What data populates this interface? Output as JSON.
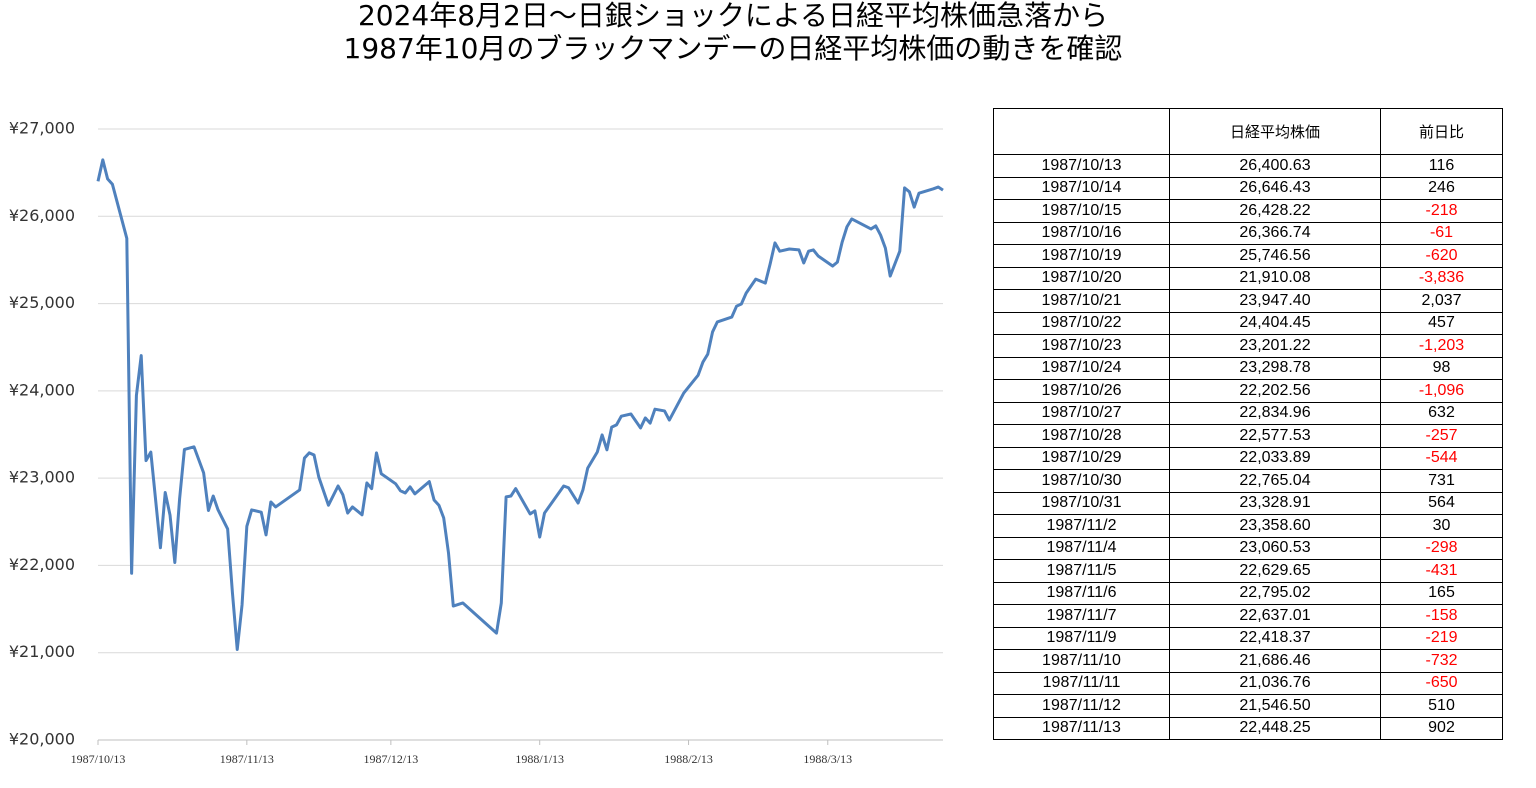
{
  "chart_data": {
    "type": "line",
    "title_lines": [
      "2024年8月2日～日銀ショックによる日経平均株価急落から",
      "1987年10月のブラックマンデーの日経平均株価の動きを確認"
    ],
    "x": [
      "1987/10/13",
      "1987/10/14",
      "1987/10/15",
      "1987/10/16",
      "1987/10/19",
      "1987/10/20",
      "1987/10/21",
      "1987/10/22",
      "1987/10/23",
      "1987/10/24",
      "1987/10/26",
      "1987/10/27",
      "1987/10/28",
      "1987/10/29",
      "1987/10/30",
      "1987/10/31",
      "1987/11/2",
      "1987/11/4",
      "1987/11/5",
      "1987/11/6",
      "1987/11/7",
      "1987/11/9",
      "1987/11/10",
      "1987/11/11",
      "1987/11/12",
      "1987/11/13",
      "1987/11/14",
      "1987/11/16",
      "1987/11/17",
      "1987/11/18",
      "1987/11/19",
      "1987/11/24",
      "1987/11/25",
      "1987/11/26",
      "1987/11/27",
      "1987/11/28",
      "1987/11/30",
      "1987/12/2",
      "1987/12/3",
      "1987/12/4",
      "1987/12/5",
      "1987/12/7",
      "1987/12/8",
      "1987/12/9",
      "1987/12/10",
      "1987/12/11",
      "1987/12/14",
      "1987/12/15",
      "1987/12/16",
      "1987/12/17",
      "1987/12/18",
      "1987/12/21",
      "1987/12/22",
      "1987/12/23",
      "1987/12/24",
      "1987/12/25",
      "1987/12/26",
      "1987/12/28",
      "1988/1/4",
      "1988/1/5",
      "1988/1/6",
      "1988/1/7",
      "1988/1/8",
      "1988/1/11",
      "1988/1/12",
      "1988/1/13",
      "1988/1/14",
      "1988/1/18",
      "1988/1/19",
      "1988/1/21",
      "1988/1/22",
      "1988/1/23",
      "1988/1/25",
      "1988/1/26",
      "1988/1/27",
      "1988/1/28",
      "1988/1/29",
      "1988/1/30",
      "1988/2/1",
      "1988/2/3",
      "1988/2/4",
      "1988/2/5",
      "1988/2/6",
      "1988/2/8",
      "1988/2/9",
      "1988/2/12",
      "1988/2/15",
      "1988/2/16",
      "1988/2/17",
      "1988/2/18",
      "1988/2/19",
      "1988/2/22",
      "1988/2/23",
      "1988/2/24",
      "1988/2/25",
      "1988/2/26",
      "1988/2/27",
      "1988/2/29",
      "1988/3/1",
      "1988/3/2",
      "1988/3/3",
      "1988/3/5",
      "1988/3/7",
      "1988/3/8",
      "1988/3/9",
      "1988/3/10",
      "1988/3/11",
      "1988/3/14",
      "1988/3/15",
      "1988/3/16",
      "1988/3/17",
      "1988/3/18",
      "1988/3/22",
      "1988/3/23",
      "1988/3/24",
      "1988/3/25",
      "1988/3/26",
      "1988/3/28",
      "1988/3/29",
      "1988/3/30",
      "1988/3/31",
      "1988/4/1",
      "1988/4/4",
      "1988/4/5",
      "1988/4/6"
    ],
    "values": [
      26400.63,
      26646.43,
      26428.22,
      26366.74,
      25746.56,
      21910.08,
      23947.4,
      24404.45,
      23201.22,
      23298.78,
      22202.56,
      22834.96,
      22577.53,
      22033.89,
      22765.04,
      23328.91,
      23358.6,
      23060.53,
      22629.65,
      22795.02,
      22637.01,
      22418.37,
      21686.46,
      21036.76,
      21546.5,
      22448.25,
      22636,
      22610,
      22350,
      22727,
      22670,
      22865,
      23230,
      23290,
      23265,
      23010,
      22690,
      22910,
      22810,
      22600,
      22670,
      22580,
      22945,
      22880,
      23290,
      23050,
      22935,
      22855,
      22830,
      22900,
      22820,
      22960,
      22750,
      22690,
      22545,
      22145,
      21535,
      21570,
      21225,
      21570,
      22785,
      22795,
      22880,
      22590,
      22625,
      22325,
      22600,
      22910,
      22890,
      22715,
      22865,
      23115,
      23300,
      23495,
      23325,
      23585,
      23610,
      23710,
      23735,
      23575,
      23690,
      23630,
      23790,
      23770,
      23665,
      23975,
      24180,
      24330,
      24420,
      24675,
      24790,
      24845,
      24970,
      24995,
      25120,
      25200,
      25280,
      25235,
      25455,
      25695,
      25600,
      25625,
      25615,
      25465,
      25600,
      25615,
      25545,
      25430,
      25475,
      25705,
      25880,
      25970,
      25855,
      25890,
      25785,
      25635,
      25315,
      25600,
      26325,
      26280,
      26105,
      26265,
      26315,
      26335,
      26300
    ],
    "color": "#4f81bd",
    "xlim": [
      "1987/10/13",
      "1988/4/6"
    ],
    "xticks": [
      "1987/10/13",
      "1987/11/13",
      "1987/12/13",
      "1988/1/13",
      "1988/2/13",
      "1988/3/13"
    ],
    "ylim": [
      20000,
      27000
    ],
    "yticks": [
      {
        "value": 20000,
        "label": "¥20,000"
      },
      {
        "value": 21000,
        "label": "¥21,000"
      },
      {
        "value": 22000,
        "label": "¥22,000"
      },
      {
        "value": 23000,
        "label": "¥23,000"
      },
      {
        "value": 24000,
        "label": "¥24,000"
      },
      {
        "value": 25000,
        "label": "¥25,000"
      },
      {
        "value": 26000,
        "label": "¥26,000"
      },
      {
        "value": 27000,
        "label": "¥27,000"
      }
    ],
    "grid": true
  },
  "table": {
    "columns": [
      "日経平均株価",
      "前日比"
    ],
    "negative_color": "#ff0000",
    "rows": [
      [
        "1987/10/13",
        "26,400.63",
        "116"
      ],
      [
        "1987/10/14",
        "26,646.43",
        "246"
      ],
      [
        "1987/10/15",
        "26,428.22",
        "-218"
      ],
      [
        "1987/10/16",
        "26,366.74",
        "-61"
      ],
      [
        "1987/10/19",
        "25,746.56",
        "-620"
      ],
      [
        "1987/10/20",
        "21,910.08",
        "-3,836"
      ],
      [
        "1987/10/21",
        "23,947.40",
        "2,037"
      ],
      [
        "1987/10/22",
        "24,404.45",
        "457"
      ],
      [
        "1987/10/23",
        "23,201.22",
        "-1,203"
      ],
      [
        "1987/10/24",
        "23,298.78",
        "98"
      ],
      [
        "1987/10/26",
        "22,202.56",
        "-1,096"
      ],
      [
        "1987/10/27",
        "22,834.96",
        "632"
      ],
      [
        "1987/10/28",
        "22,577.53",
        "-257"
      ],
      [
        "1987/10/29",
        "22,033.89",
        "-544"
      ],
      [
        "1987/10/30",
        "22,765.04",
        "731"
      ],
      [
        "1987/10/31",
        "23,328.91",
        "564"
      ],
      [
        "1987/11/2",
        "23,358.60",
        "30"
      ],
      [
        "1987/11/4",
        "23,060.53",
        "-298"
      ],
      [
        "1987/11/5",
        "22,629.65",
        "-431"
      ],
      [
        "1987/11/6",
        "22,795.02",
        "165"
      ],
      [
        "1987/11/7",
        "22,637.01",
        "-158"
      ],
      [
        "1987/11/9",
        "22,418.37",
        "-219"
      ],
      [
        "1987/11/10",
        "21,686.46",
        "-732"
      ],
      [
        "1987/11/11",
        "21,036.76",
        "-650"
      ],
      [
        "1987/11/12",
        "21,546.50",
        "510"
      ],
      [
        "1987/11/13",
        "22,448.25",
        "902"
      ]
    ]
  }
}
